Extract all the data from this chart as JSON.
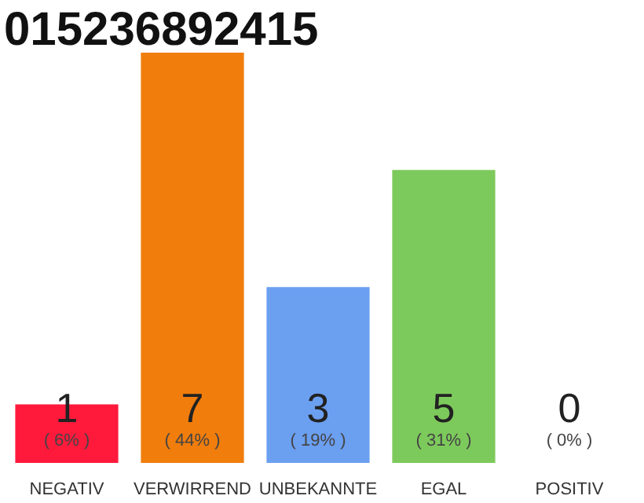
{
  "chart_data": {
    "type": "bar",
    "title": "015236892415",
    "categories": [
      "NEGATIV",
      "VERWIRREND",
      "UNBEKANNTE",
      "EGAL",
      "POSITIV"
    ],
    "values": [
      1,
      7,
      3,
      5,
      0
    ],
    "colors": [
      "#ff1a3c",
      "#f07d0c",
      "#6b9ff0",
      "#7dca5c",
      "#cccccc"
    ],
    "ylim": [
      0,
      7
    ],
    "data_labels": true,
    "grid": false,
    "annotations": [
      "( 6% )",
      "( 44% )",
      "( 19% )",
      "( 31% )",
      "( 0% )"
    ]
  }
}
